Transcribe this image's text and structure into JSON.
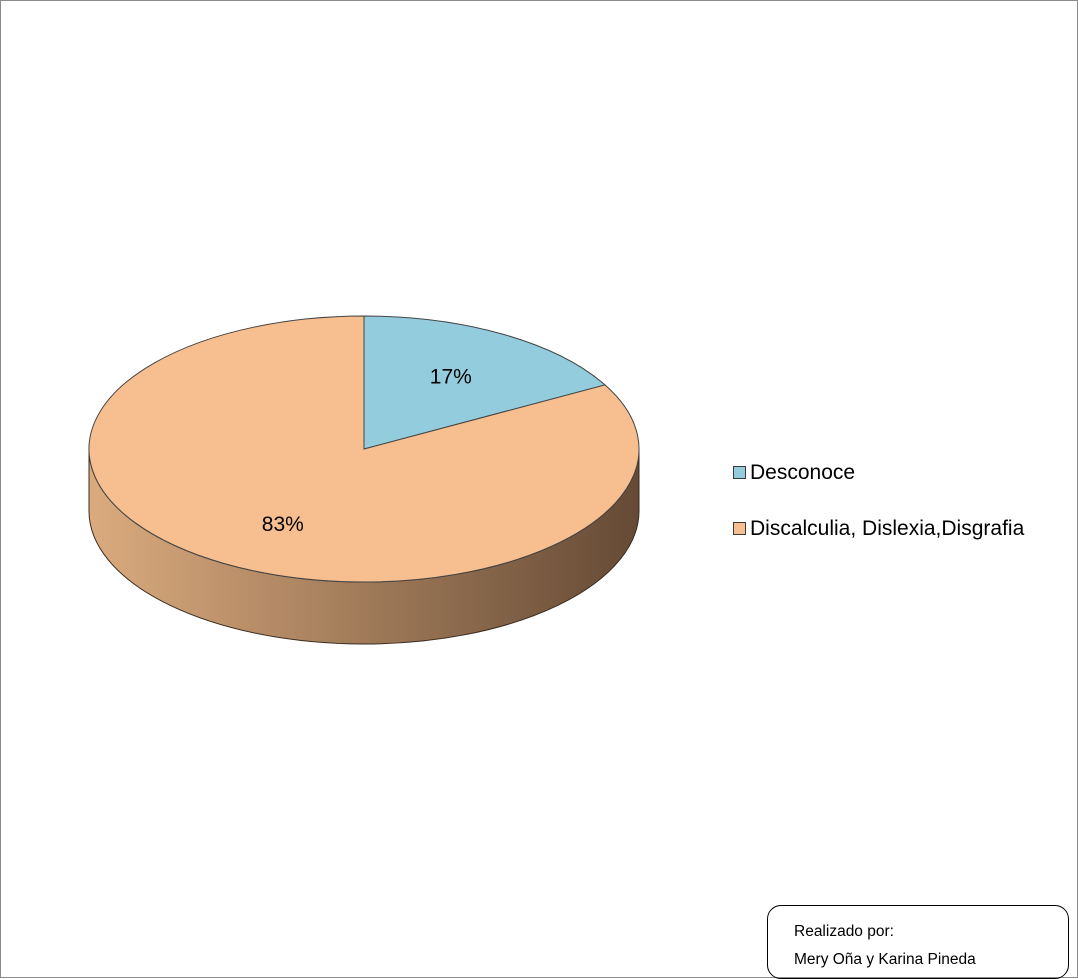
{
  "chart_data": {
    "type": "pie",
    "style": "3d",
    "slices": [
      {
        "label": "Desconoce",
        "value": 17,
        "display": "17%",
        "color": "#93cddd"
      },
      {
        "label": "Discalculia, Dislexia,Disgrafia",
        "value": 83,
        "display": "83%",
        "color": "#f7be8f"
      }
    ],
    "legend_position": "right",
    "side_gradient": [
      "#dbab7e",
      "#654a35"
    ]
  },
  "credit": {
    "line1": "Realizado por:",
    "line2": "Mery  Oña y Karina Pineda"
  }
}
